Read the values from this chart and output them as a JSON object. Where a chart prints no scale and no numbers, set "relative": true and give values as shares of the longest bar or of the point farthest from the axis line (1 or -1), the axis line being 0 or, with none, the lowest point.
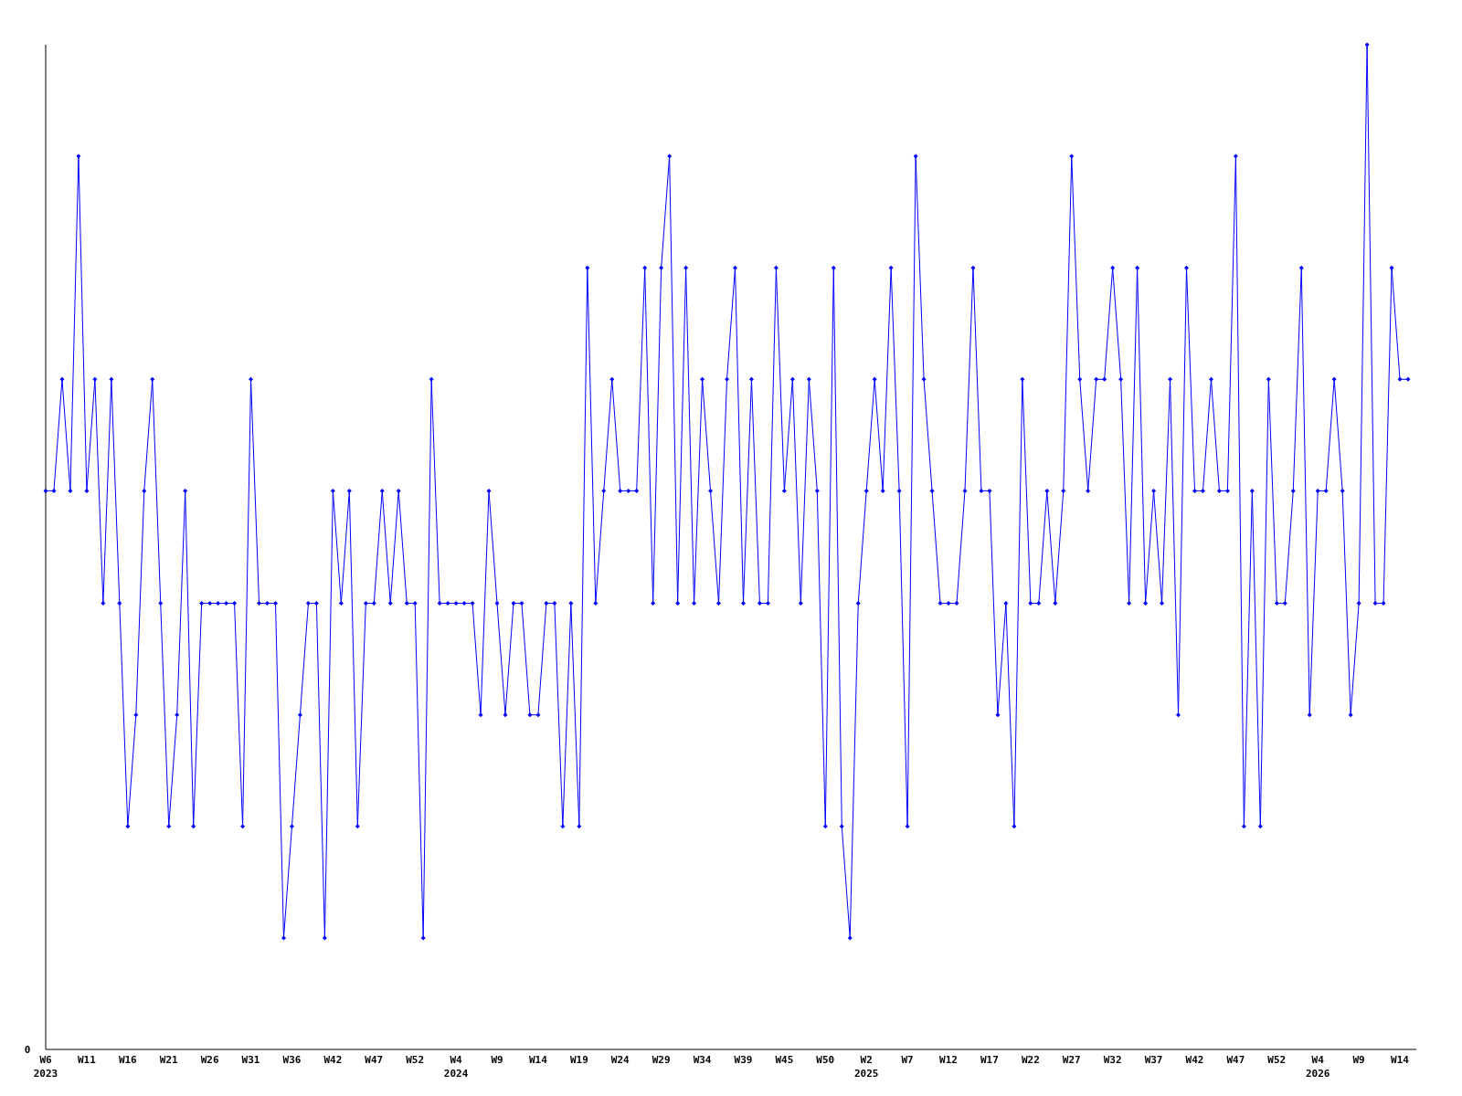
{
  "chart_data": {
    "type": "line",
    "relative": true,
    "marker": "diamond",
    "line_style": "solid",
    "categories": [
      "W6\n2023",
      null,
      null,
      null,
      null,
      "W11",
      null,
      null,
      null,
      null,
      "W16",
      null,
      null,
      null,
      null,
      "W21",
      null,
      null,
      null,
      null,
      "W26",
      null,
      null,
      null,
      null,
      "W31",
      null,
      null,
      null,
      null,
      "W36",
      null,
      null,
      null,
      null,
      "W42",
      null,
      null,
      null,
      null,
      "W47",
      null,
      null,
      null,
      null,
      "W52",
      null,
      null,
      null,
      null,
      "W4\n2024",
      null,
      null,
      null,
      null,
      "W9",
      null,
      null,
      null,
      null,
      "W14",
      null,
      null,
      null,
      null,
      "W19",
      null,
      null,
      null,
      null,
      "W24",
      null,
      null,
      null,
      null,
      "W29",
      null,
      null,
      null,
      null,
      "W34",
      null,
      null,
      null,
      null,
      "W39",
      null,
      null,
      null,
      null,
      "W45",
      null,
      null,
      null,
      null,
      "W50",
      null,
      null,
      null,
      null,
      "W2\n2025",
      null,
      null,
      null,
      null,
      "W7",
      null,
      null,
      null,
      null,
      "W12",
      null,
      null,
      null,
      null,
      "W17",
      null,
      null,
      null,
      null,
      "W22",
      null,
      null,
      null,
      null,
      "W27",
      null,
      null,
      null,
      null,
      "W32",
      null,
      null,
      null,
      null,
      "W37",
      null,
      null,
      null,
      null,
      "W42",
      null,
      null,
      null,
      null,
      "W47",
      null,
      null,
      null,
      null,
      "W52",
      null,
      null,
      null,
      null,
      "W4\n2026",
      null,
      null,
      null,
      null,
      "W9",
      null,
      null,
      null,
      null,
      "W14",
      null
    ],
    "annotations": [
      "0"
    ],
    "series": [
      {
        "color": "#0000ff",
        "values": [
          0.556,
          0.556,
          0.667,
          0.556,
          0.889,
          0.556,
          0.667,
          0.444,
          0.667,
          0.444,
          0.222,
          0.333,
          0.556,
          0.667,
          0.444,
          0.222,
          0.333,
          0.556,
          0.222,
          0.444,
          0.444,
          0.444,
          0.444,
          0.444,
          0.222,
          0.667,
          0.444,
          0.444,
          0.444,
          0.111,
          0.222,
          0.333,
          0.444,
          0.444,
          0.111,
          0.556,
          0.444,
          0.556,
          0.222,
          0.444,
          0.444,
          0.556,
          0.444,
          0.556,
          0.444,
          0.444,
          0.111,
          0.667,
          0.444,
          0.444,
          0.444,
          0.444,
          0.444,
          0.333,
          0.556,
          0.444,
          0.333,
          0.444,
          0.444,
          0.333,
          0.333,
          0.444,
          0.444,
          0.222,
          0.444,
          0.222,
          0.778,
          0.444,
          0.556,
          0.667,
          0.556,
          0.556,
          0.556,
          0.778,
          0.444,
          0.778,
          0.889,
          0.444,
          0.778,
          0.444,
          0.667,
          0.556,
          0.444,
          0.667,
          0.778,
          0.444,
          0.667,
          0.444,
          0.444,
          0.778,
          0.556,
          0.667,
          0.444,
          0.667,
          0.556,
          0.222,
          0.778,
          0.222,
          0.111,
          0.444,
          0.556,
          0.667,
          0.556,
          0.778,
          0.556,
          0.222,
          0.889,
          0.667,
          0.556,
          0.444,
          0.444,
          0.444,
          0.556,
          0.778,
          0.556,
          0.556,
          0.333,
          0.444,
          0.222,
          0.667,
          0.444,
          0.444,
          0.556,
          0.444,
          0.556,
          0.889,
          0.667,
          0.556,
          0.667,
          0.667,
          0.778,
          0.667,
          0.444,
          0.778,
          0.444,
          0.556,
          0.444,
          0.667,
          0.333,
          0.778,
          0.556,
          0.556,
          0.667,
          0.556,
          0.556,
          0.889,
          0.222,
          0.556,
          0.222,
          0.667,
          0.444,
          0.444,
          0.556,
          0.778,
          0.333,
          0.556,
          0.556,
          0.667,
          0.556,
          0.333,
          0.444,
          1,
          0.444,
          0.444,
          0.778,
          0.667,
          0.667
        ]
      }
    ]
  }
}
